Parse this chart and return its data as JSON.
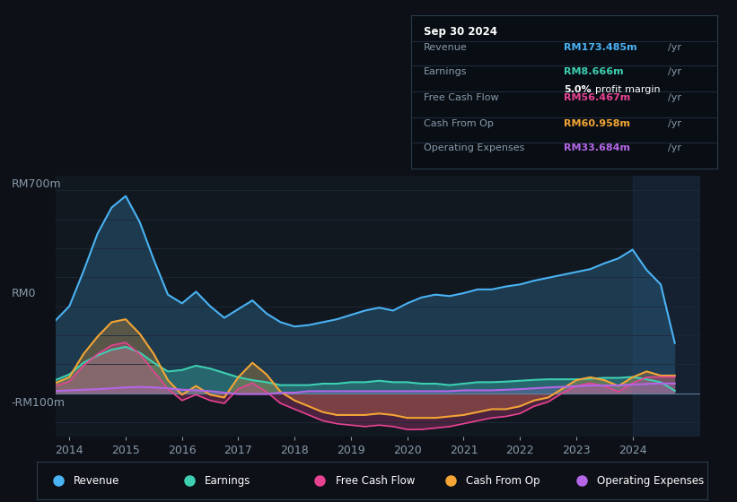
{
  "bg_color": "#0d1117",
  "plot_bg_color": "#111820",
  "grid_color": "#1e2a3a",
  "text_color": "#8899aa",
  "y_label_top": "RM700m",
  "y_label_zero": "RM0",
  "y_label_bottom": "-RM100m",
  "x_ticks": [
    2014,
    2015,
    2016,
    2017,
    2018,
    2019,
    2020,
    2021,
    2022,
    2023,
    2024
  ],
  "colors": {
    "revenue": "#4ab3f4",
    "earnings": "#3ecfb2",
    "free_cash_flow": "#e84393",
    "cash_from_op": "#f4a535",
    "operating_expenses": "#b566e8"
  },
  "info_box": {
    "date": "Sep 30 2024",
    "revenue_val": "RM173.485m",
    "earnings_val": "RM8.666m",
    "profit_margin": "5.0%",
    "fcf_val": "RM56.467m",
    "cfo_val": "RM60.958m",
    "opex_val": "RM33.684m"
  },
  "years": [
    2013.75,
    2014.0,
    2014.25,
    2014.5,
    2014.75,
    2015.0,
    2015.25,
    2015.5,
    2015.75,
    2016.0,
    2016.25,
    2016.5,
    2016.75,
    2017.0,
    2017.25,
    2017.5,
    2017.75,
    2018.0,
    2018.25,
    2018.5,
    2018.75,
    2019.0,
    2019.25,
    2019.5,
    2019.75,
    2020.0,
    2020.25,
    2020.5,
    2020.75,
    2021.0,
    2021.25,
    2021.5,
    2021.75,
    2022.0,
    2022.25,
    2022.5,
    2022.75,
    2023.0,
    2023.25,
    2023.5,
    2023.75,
    2024.0,
    2024.25,
    2024.5,
    2024.75
  ],
  "revenue": [
    250,
    300,
    420,
    550,
    640,
    680,
    590,
    460,
    340,
    310,
    350,
    300,
    260,
    290,
    320,
    275,
    245,
    230,
    235,
    245,
    255,
    270,
    285,
    295,
    285,
    310,
    330,
    340,
    335,
    345,
    358,
    358,
    368,
    375,
    388,
    398,
    408,
    418,
    428,
    448,
    465,
    495,
    425,
    375,
    173
  ],
  "earnings": [
    45,
    65,
    105,
    130,
    150,
    160,
    140,
    105,
    75,
    80,
    95,
    85,
    70,
    55,
    45,
    38,
    28,
    28,
    28,
    33,
    33,
    38,
    38,
    43,
    38,
    38,
    33,
    33,
    28,
    33,
    38,
    38,
    40,
    43,
    46,
    48,
    48,
    48,
    50,
    53,
    53,
    56,
    48,
    38,
    8.666
  ],
  "cash_from_op": [
    35,
    55,
    135,
    195,
    245,
    255,
    205,
    135,
    45,
    -5,
    25,
    -5,
    -15,
    55,
    105,
    65,
    5,
    -25,
    -45,
    -65,
    -75,
    -75,
    -75,
    -70,
    -75,
    -85,
    -85,
    -85,
    -80,
    -75,
    -65,
    -55,
    -55,
    -45,
    -25,
    -15,
    15,
    45,
    55,
    45,
    25,
    55,
    75,
    60.958,
    60.958
  ],
  "free_cash_flow": [
    25,
    40,
    95,
    135,
    165,
    175,
    135,
    75,
    15,
    -25,
    -5,
    -25,
    -35,
    15,
    35,
    5,
    -35,
    -55,
    -75,
    -95,
    -105,
    -110,
    -115,
    -110,
    -115,
    -125,
    -125,
    -120,
    -115,
    -105,
    -95,
    -85,
    -80,
    -70,
    -45,
    -30,
    0,
    25,
    35,
    25,
    5,
    35,
    55,
    56.467,
    56.467
  ],
  "operating_expenses": [
    8,
    10,
    12,
    14,
    17,
    20,
    22,
    20,
    17,
    12,
    10,
    7,
    2,
    -3,
    -3,
    -3,
    2,
    2,
    7,
    7,
    7,
    7,
    7,
    7,
    7,
    7,
    7,
    7,
    7,
    10,
    10,
    10,
    12,
    14,
    17,
    20,
    22,
    24,
    27,
    27,
    27,
    30,
    32,
    33.684,
    33.684
  ]
}
